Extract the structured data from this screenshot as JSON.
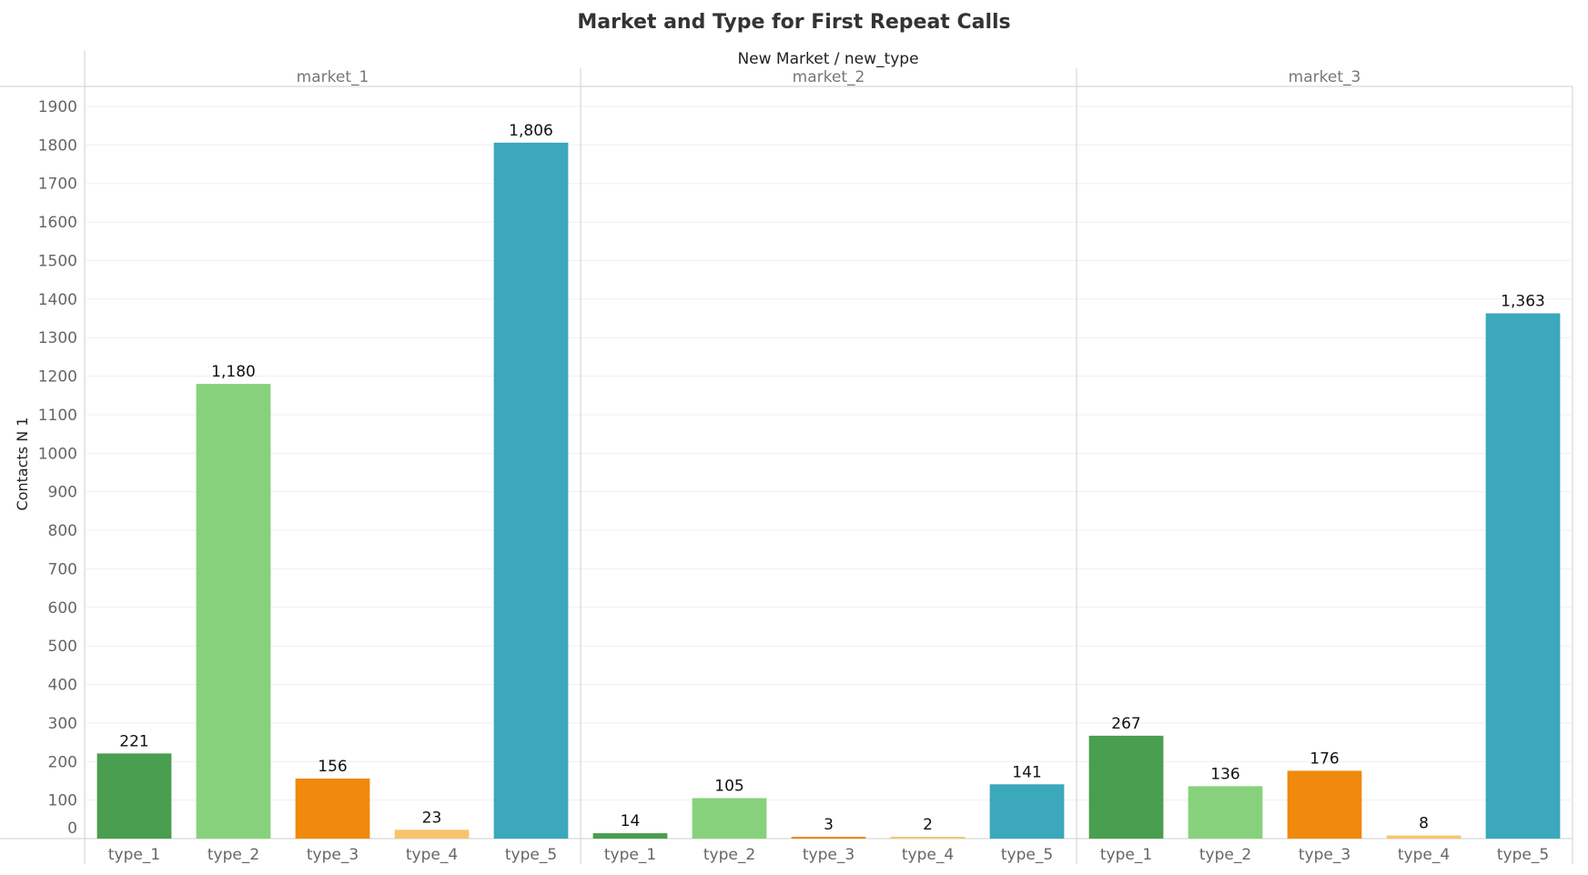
{
  "chart_data": {
    "type": "bar",
    "title": "Market and Type for First Repeat Calls",
    "column_header": "New Market / new_type",
    "ylabel": "Contacts N 1",
    "xlabel": "",
    "ylim": [
      0,
      1900
    ],
    "yticks": [
      0,
      100,
      200,
      300,
      400,
      500,
      600,
      700,
      800,
      900,
      1000,
      1100,
      1200,
      1300,
      1400,
      1500,
      1600,
      1700,
      1800,
      1900
    ],
    "grid": true,
    "colors": {
      "type_1": "#4a9e4f",
      "type_2": "#87d17c",
      "type_3": "#ef8a0c",
      "type_4": "#f8c46e",
      "type_5": "#3ba8bc"
    },
    "panels": [
      {
        "name": "market_1",
        "categories": [
          "type_1",
          "type_2",
          "type_3",
          "type_4",
          "type_5"
        ],
        "values": [
          221,
          1180,
          156,
          23,
          1806
        ],
        "labels": [
          "221",
          "1,180",
          "156",
          "23",
          "1,806"
        ]
      },
      {
        "name": "market_2",
        "categories": [
          "type_1",
          "type_2",
          "type_3",
          "type_4",
          "type_5"
        ],
        "values": [
          14,
          105,
          3,
          2,
          141
        ],
        "labels": [
          "14",
          "105",
          "3",
          "2",
          "141"
        ]
      },
      {
        "name": "market_3",
        "categories": [
          "type_1",
          "type_2",
          "type_3",
          "type_4",
          "type_5"
        ],
        "values": [
          267,
          136,
          176,
          8,
          1363
        ],
        "labels": [
          "267",
          "136",
          "176",
          "8",
          "1,363"
        ]
      }
    ]
  }
}
